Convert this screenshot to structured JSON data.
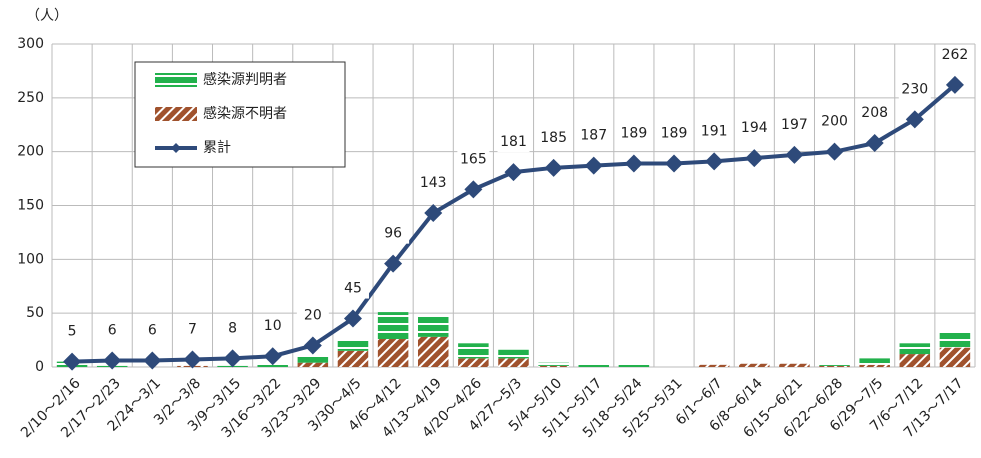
{
  "chart_data": {
    "type": "bar",
    "y_label": "（人）",
    "categories": [
      "2/10～2/16",
      "2/17～2/23",
      "2/24～3/1",
      "3/2～3/8",
      "3/9～3/15",
      "3/16～3/22",
      "3/23～3/29",
      "3/30～4/5",
      "4/6～4/12",
      "4/13～4/19",
      "4/20～4/26",
      "4/27～5/3",
      "5/4～5/10",
      "5/11～5/17",
      "5/18～5/24",
      "5/25～5/31",
      "6/1～6/7",
      "6/8～6/14",
      "6/15～6/21",
      "6/22～6/28",
      "6/29～7/5",
      "7/6～7/12",
      "7/13～7/17"
    ],
    "series": [
      {
        "name": "感染源判明者",
        "color": "#22b14c",
        "values": [
          5,
          1,
          0,
          0,
          1,
          2,
          6,
          10,
          25,
          19,
          14,
          8,
          3,
          2,
          2,
          0,
          0,
          0,
          0,
          2,
          6,
          10,
          14
        ]
      },
      {
        "name": "感染源不明者",
        "color": "#a0522d",
        "values": [
          0,
          0,
          0,
          1,
          0,
          0,
          4,
          15,
          26,
          28,
          8,
          8,
          1,
          0,
          0,
          0,
          2,
          3,
          3,
          1,
          2,
          12,
          18
        ]
      },
      {
        "name": "累計",
        "type": "line",
        "color": "#2e4a7a",
        "values": [
          5,
          6,
          6,
          7,
          8,
          10,
          20,
          45,
          96,
          143,
          165,
          181,
          185,
          187,
          189,
          189,
          191,
          194,
          197,
          200,
          208,
          230,
          262
        ]
      }
    ],
    "ylim": [
      0,
      300
    ],
    "yticks": [
      0,
      50,
      100,
      150,
      200,
      250,
      300
    ],
    "grid": true,
    "legend": "upper left"
  }
}
